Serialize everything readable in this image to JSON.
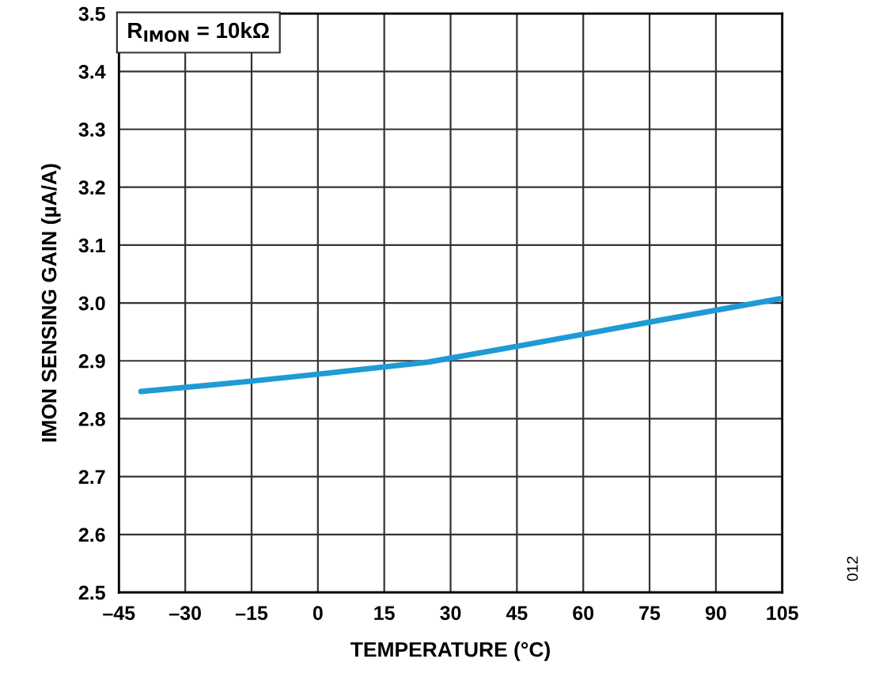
{
  "chart_data": {
    "type": "line",
    "xlabel": "TEMPERATURE (°C)",
    "ylabel": "IMON SENSING GAIN (µA/A)",
    "x": [
      -40,
      -15,
      0,
      25,
      45,
      75,
      105
    ],
    "series": [
      {
        "color": "#1f9ad6",
        "values": [
          2.847,
          2.865,
          2.877,
          2.898,
          2.925,
          2.967,
          3.008
        ]
      }
    ],
    "xlim": [
      -45,
      105
    ],
    "xticks": [
      {
        "value": -45,
        "label": "–45"
      },
      {
        "value": -30,
        "label": "–30"
      },
      {
        "value": -15,
        "label": "–15"
      },
      0,
      15,
      30,
      45,
      60,
      75,
      90,
      105
    ],
    "ylim": [
      2.5,
      3.5
    ],
    "yticks": [
      2.5,
      2.6,
      2.7,
      2.8,
      2.9,
      {
        "value": 3.0,
        "label": "3.0"
      },
      3.1,
      3.2,
      3.3,
      3.4,
      3.5
    ],
    "grid": true,
    "marker": "none",
    "line_style": "solid",
    "annotations": [
      "R$_{IMON}$ = 10kΩ",
      "012"
    ]
  }
}
